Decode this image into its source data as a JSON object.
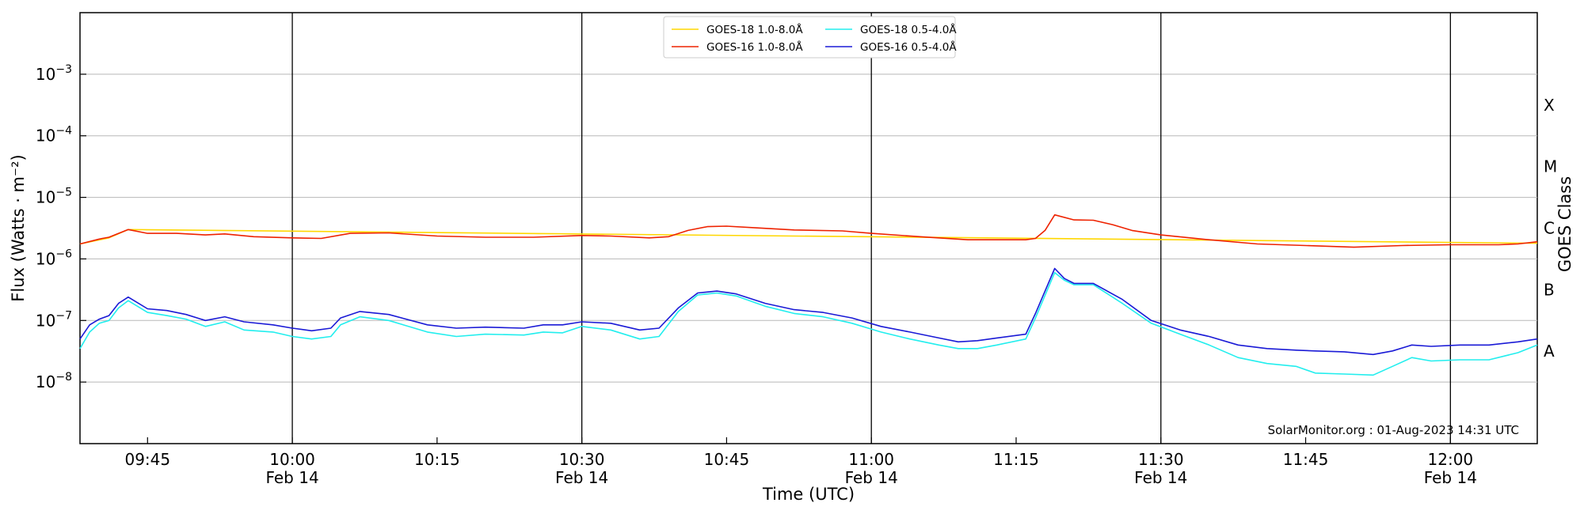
{
  "chart_data": {
    "type": "line",
    "xlabel": "Time (UTC)",
    "ylabel": "Flux (Watts · m⁻²)",
    "ylabel_right": "GOES Class",
    "xlim": [
      "09:38",
      "12:09"
    ],
    "ylim_log10": [
      -9,
      -2
    ],
    "y_scale": "log",
    "x_ticks": [
      {
        "time": "09:45",
        "label": "09:45",
        "sublabel": ""
      },
      {
        "time": "10:00",
        "label": "10:00",
        "sublabel": "Feb 14"
      },
      {
        "time": "10:15",
        "label": "10:15",
        "sublabel": ""
      },
      {
        "time": "10:30",
        "label": "10:30",
        "sublabel": "Feb 14"
      },
      {
        "time": "10:45",
        "label": "10:45",
        "sublabel": ""
      },
      {
        "time": "11:00",
        "label": "11:00",
        "sublabel": "Feb 14"
      },
      {
        "time": "11:15",
        "label": "11:15",
        "sublabel": ""
      },
      {
        "time": "11:30",
        "label": "11:30",
        "sublabel": "Feb 14"
      },
      {
        "time": "11:45",
        "label": "11:45",
        "sublabel": ""
      },
      {
        "time": "12:00",
        "label": "12:00",
        "sublabel": "Feb 14"
      }
    ],
    "y_ticks": [
      {
        "exp": -8,
        "base": "10",
        "sup": "−8"
      },
      {
        "exp": -7,
        "base": "10",
        "sup": "−7"
      },
      {
        "exp": -6,
        "base": "10",
        "sup": "−6"
      },
      {
        "exp": -5,
        "base": "10",
        "sup": "−5"
      },
      {
        "exp": -4,
        "base": "10",
        "sup": "−4"
      },
      {
        "exp": -3,
        "base": "10",
        "sup": "−3"
      }
    ],
    "goes_classes": [
      {
        "label": "A",
        "exp": -7.5
      },
      {
        "label": "B",
        "exp": -6.5
      },
      {
        "label": "C",
        "exp": -5.5
      },
      {
        "label": "M",
        "exp": -4.5
      },
      {
        "label": "X",
        "exp": -3.5
      }
    ],
    "grid": "horizontal at decades",
    "vlines_at": [
      "10:00",
      "10:30",
      "11:00",
      "11:30",
      "12:00"
    ],
    "legend_position": "top-center",
    "credit": "SolarMonitor.org : 01-Aug-2023 14:31 UTC",
    "series": [
      {
        "name": "GOES-18 1.0-8.0Å",
        "color": "#ffd700",
        "points": [
          [
            "09:38",
            1.75e-06
          ],
          [
            "09:41",
            2.2e-06
          ],
          [
            "09:43",
            3e-06
          ],
          [
            "12:09",
            1.8e-06
          ]
        ]
      },
      {
        "name": "GOES-16 1.0-8.0Å",
        "color": "#ee2200",
        "points": [
          [
            "09:38",
            1.75e-06
          ],
          [
            "09:40",
            2.1e-06
          ],
          [
            "09:41",
            2.25e-06
          ],
          [
            "09:43",
            3e-06
          ],
          [
            "09:45",
            2.6e-06
          ],
          [
            "09:48",
            2.6e-06
          ],
          [
            "09:51",
            2.45e-06
          ],
          [
            "09:53",
            2.55e-06
          ],
          [
            "09:56",
            2.3e-06
          ],
          [
            "10:00",
            2.2e-06
          ],
          [
            "10:03",
            2.15e-06
          ],
          [
            "10:06",
            2.6e-06
          ],
          [
            "10:10",
            2.65e-06
          ],
          [
            "10:15",
            2.35e-06
          ],
          [
            "10:20",
            2.25e-06
          ],
          [
            "10:25",
            2.25e-06
          ],
          [
            "10:30",
            2.4e-06
          ],
          [
            "10:33",
            2.35e-06
          ],
          [
            "10:37",
            2.2e-06
          ],
          [
            "10:39",
            2.3e-06
          ],
          [
            "10:41",
            2.9e-06
          ],
          [
            "10:43",
            3.35e-06
          ],
          [
            "10:45",
            3.4e-06
          ],
          [
            "10:48",
            3.2e-06
          ],
          [
            "10:52",
            2.95e-06
          ],
          [
            "10:57",
            2.85e-06
          ],
          [
            "11:00",
            2.6e-06
          ],
          [
            "11:05",
            2.3e-06
          ],
          [
            "11:10",
            2.05e-06
          ],
          [
            "11:13",
            2.05e-06
          ],
          [
            "11:16",
            2.05e-06
          ],
          [
            "11:17",
            2.15e-06
          ],
          [
            "11:18",
            2.9e-06
          ],
          [
            "11:19",
            5.2e-06
          ],
          [
            "11:21",
            4.3e-06
          ],
          [
            "11:23",
            4.25e-06
          ],
          [
            "11:25",
            3.6e-06
          ],
          [
            "11:27",
            2.9e-06
          ],
          [
            "11:30",
            2.45e-06
          ],
          [
            "11:35",
            2.05e-06
          ],
          [
            "11:40",
            1.75e-06
          ],
          [
            "11:45",
            1.65e-06
          ],
          [
            "11:50",
            1.55e-06
          ],
          [
            "11:55",
            1.65e-06
          ],
          [
            "12:00",
            1.7e-06
          ],
          [
            "12:05",
            1.7e-06
          ],
          [
            "12:07",
            1.75e-06
          ],
          [
            "12:09",
            1.9e-06
          ]
        ]
      },
      {
        "name": "GOES-18 0.5-4.0Å",
        "color": "#22eeee",
        "points": [
          [
            "09:38",
            3.5e-08
          ],
          [
            "09:39",
            6.5e-08
          ],
          [
            "09:40",
            9e-08
          ],
          [
            "09:41",
            1e-07
          ],
          [
            "09:42",
            1.6e-07
          ],
          [
            "09:43",
            2.1e-07
          ],
          [
            "09:45",
            1.35e-07
          ],
          [
            "09:47",
            1.2e-07
          ],
          [
            "09:49",
            1.05e-07
          ],
          [
            "09:51",
            8e-08
          ],
          [
            "09:53",
            9.5e-08
          ],
          [
            "09:55",
            7e-08
          ],
          [
            "09:58",
            6.5e-08
          ],
          [
            "10:00",
            5.5e-08
          ],
          [
            "10:02",
            5e-08
          ],
          [
            "10:04",
            5.5e-08
          ],
          [
            "10:05",
            8.5e-08
          ],
          [
            "10:07",
            1.15e-07
          ],
          [
            "10:10",
            1e-07
          ],
          [
            "10:14",
            6.5e-08
          ],
          [
            "10:17",
            5.5e-08
          ],
          [
            "10:20",
            6e-08
          ],
          [
            "10:24",
            5.8e-08
          ],
          [
            "10:26",
            6.5e-08
          ],
          [
            "10:28",
            6.3e-08
          ],
          [
            "10:30",
            8e-08
          ],
          [
            "10:33",
            7e-08
          ],
          [
            "10:36",
            5e-08
          ],
          [
            "10:38",
            5.5e-08
          ],
          [
            "10:40",
            1.4e-07
          ],
          [
            "10:42",
            2.6e-07
          ],
          [
            "10:44",
            2.8e-07
          ],
          [
            "10:46",
            2.5e-07
          ],
          [
            "10:49",
            1.7e-07
          ],
          [
            "10:52",
            1.3e-07
          ],
          [
            "10:55",
            1.15e-07
          ],
          [
            "10:58",
            9e-08
          ],
          [
            "11:01",
            6.5e-08
          ],
          [
            "11:04",
            5e-08
          ],
          [
            "11:07",
            4e-08
          ],
          [
            "11:09",
            3.5e-08
          ],
          [
            "11:11",
            3.5e-08
          ],
          [
            "11:13",
            4e-08
          ],
          [
            "11:16",
            5e-08
          ],
          [
            "11:17",
            1.1e-07
          ],
          [
            "11:19",
            6e-07
          ],
          [
            "11:20",
            4.5e-07
          ],
          [
            "11:21",
            3.8e-07
          ],
          [
            "11:23",
            3.8e-07
          ],
          [
            "11:26",
            1.9e-07
          ],
          [
            "11:29",
            9e-08
          ],
          [
            "11:32",
            6e-08
          ],
          [
            "11:35",
            4e-08
          ],
          [
            "11:38",
            2.5e-08
          ],
          [
            "11:41",
            2e-08
          ],
          [
            "11:44",
            1.8e-08
          ],
          [
            "11:46",
            1.4e-08
          ],
          [
            "11:49",
            1.35e-08
          ],
          [
            "11:52",
            1.3e-08
          ],
          [
            "11:54",
            1.8e-08
          ],
          [
            "11:56",
            2.5e-08
          ],
          [
            "11:58",
            2.2e-08
          ],
          [
            "12:01",
            2.3e-08
          ],
          [
            "12:04",
            2.3e-08
          ],
          [
            "12:07",
            3e-08
          ],
          [
            "12:09",
            4e-08
          ]
        ]
      },
      {
        "name": "GOES-16 0.5-4.0Å",
        "color": "#1a1ad6",
        "points": [
          [
            "09:38",
            5e-08
          ],
          [
            "09:39",
            8.5e-08
          ],
          [
            "09:40",
            1.05e-07
          ],
          [
            "09:41",
            1.2e-07
          ],
          [
            "09:42",
            1.9e-07
          ],
          [
            "09:43",
            2.4e-07
          ],
          [
            "09:45",
            1.55e-07
          ],
          [
            "09:47",
            1.45e-07
          ],
          [
            "09:49",
            1.25e-07
          ],
          [
            "09:51",
            1e-07
          ],
          [
            "09:53",
            1.15e-07
          ],
          [
            "09:55",
            9.5e-08
          ],
          [
            "09:58",
            8.5e-08
          ],
          [
            "10:00",
            7.5e-08
          ],
          [
            "10:02",
            6.8e-08
          ],
          [
            "10:04",
            7.5e-08
          ],
          [
            "10:05",
            1.1e-07
          ],
          [
            "10:07",
            1.4e-07
          ],
          [
            "10:10",
            1.25e-07
          ],
          [
            "10:14",
            8.5e-08
          ],
          [
            "10:17",
            7.5e-08
          ],
          [
            "10:20",
            7.8e-08
          ],
          [
            "10:24",
            7.5e-08
          ],
          [
            "10:26",
            8.5e-08
          ],
          [
            "10:28",
            8.5e-08
          ],
          [
            "10:30",
            9.5e-08
          ],
          [
            "10:33",
            9e-08
          ],
          [
            "10:36",
            7e-08
          ],
          [
            "10:38",
            7.5e-08
          ],
          [
            "10:40",
            1.6e-07
          ],
          [
            "10:42",
            2.8e-07
          ],
          [
            "10:44",
            3e-07
          ],
          [
            "10:46",
            2.7e-07
          ],
          [
            "10:49",
            1.9e-07
          ],
          [
            "10:52",
            1.5e-07
          ],
          [
            "10:55",
            1.35e-07
          ],
          [
            "10:58",
            1.1e-07
          ],
          [
            "11:01",
            8e-08
          ],
          [
            "11:04",
            6.5e-08
          ],
          [
            "11:07",
            5.2e-08
          ],
          [
            "11:09",
            4.5e-08
          ],
          [
            "11:11",
            4.7e-08
          ],
          [
            "11:13",
            5.2e-08
          ],
          [
            "11:16",
            6e-08
          ],
          [
            "11:17",
            1.3e-07
          ],
          [
            "11:19",
            7e-07
          ],
          [
            "11:20",
            4.8e-07
          ],
          [
            "11:21",
            4e-07
          ],
          [
            "11:23",
            4e-07
          ],
          [
            "11:26",
            2.2e-07
          ],
          [
            "11:29",
            1e-07
          ],
          [
            "11:32",
            7e-08
          ],
          [
            "11:35",
            5.5e-08
          ],
          [
            "11:38",
            4e-08
          ],
          [
            "11:41",
            3.5e-08
          ],
          [
            "11:44",
            3.3e-08
          ],
          [
            "11:46",
            3.2e-08
          ],
          [
            "11:49",
            3.1e-08
          ],
          [
            "11:52",
            2.8e-08
          ],
          [
            "11:54",
            3.2e-08
          ],
          [
            "11:56",
            4e-08
          ],
          [
            "11:58",
            3.8e-08
          ],
          [
            "12:01",
            4e-08
          ],
          [
            "12:04",
            4e-08
          ],
          [
            "12:07",
            4.5e-08
          ],
          [
            "12:09",
            5e-08
          ]
        ]
      }
    ]
  }
}
